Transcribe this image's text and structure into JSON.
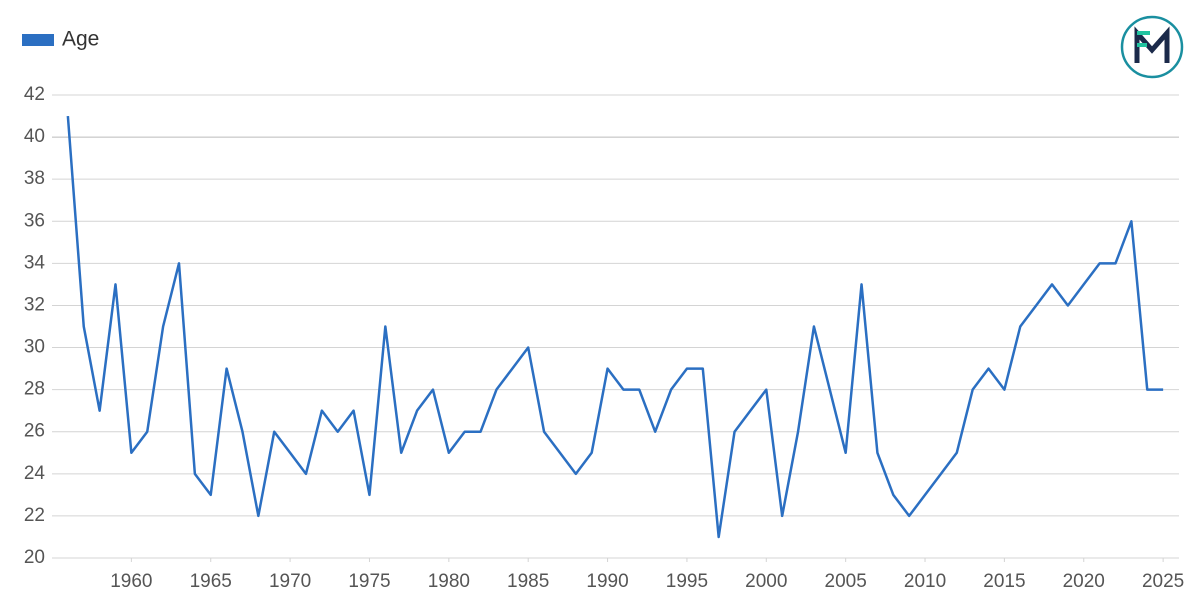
{
  "chart_data": {
    "type": "line",
    "x": [
      1956,
      1957,
      1958,
      1959,
      1960,
      1961,
      1962,
      1963,
      1964,
      1965,
      1966,
      1967,
      1968,
      1969,
      1970,
      1971,
      1972,
      1973,
      1974,
      1975,
      1976,
      1977,
      1978,
      1979,
      1980,
      1981,
      1982,
      1983,
      1984,
      1985,
      1986,
      1987,
      1988,
      1989,
      1990,
      1991,
      1992,
      1993,
      1994,
      1995,
      1996,
      1997,
      1998,
      1999,
      2000,
      2001,
      2002,
      2003,
      2004,
      2005,
      2006,
      2007,
      2008,
      2009,
      2010,
      2011,
      2012,
      2013,
      2014,
      2015,
      2016,
      2017,
      2018,
      2019,
      2020,
      2021,
      2022,
      2023,
      2024,
      2025
    ],
    "series": [
      {
        "name": "Age",
        "color": "#2b6fc2",
        "values": [
          41,
          31,
          27,
          33,
          25,
          26,
          31,
          34,
          24,
          23,
          29,
          26,
          22,
          26,
          25,
          24,
          27,
          26,
          27,
          23,
          31,
          25,
          27,
          28,
          25,
          26,
          26,
          28,
          29,
          30,
          26,
          25,
          24,
          25,
          29,
          28,
          28,
          26,
          28,
          29,
          29,
          21,
          26,
          27,
          28,
          22,
          26,
          31,
          28,
          25,
          33,
          25,
          23,
          22,
          23,
          24,
          25,
          28,
          29,
          28,
          31,
          32,
          33,
          32,
          33,
          34,
          34,
          36,
          28,
          28
        ]
      }
    ],
    "xlim": [
      1955,
      2026
    ],
    "xticks": [
      1960,
      1965,
      1970,
      1975,
      1980,
      1985,
      1990,
      1995,
      2000,
      2005,
      2010,
      2015,
      2020,
      2025
    ],
    "ylim": [
      20,
      42
    ],
    "yticks": [
      20,
      22,
      24,
      26,
      28,
      30,
      32,
      34,
      36,
      38,
      40,
      42
    ],
    "grid": true,
    "legend": "top-left"
  }
}
